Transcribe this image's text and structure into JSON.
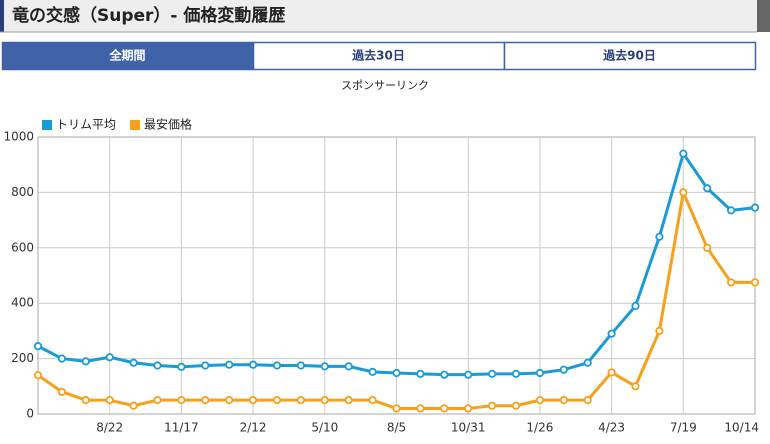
{
  "header": {
    "title": "竜の交感（Super）- 価格変動履歴"
  },
  "tabs": [
    "全期間",
    "過去30日",
    "過去90日"
  ],
  "sponsor": "スポンサーリンク",
  "chart_data": {
    "type": "line",
    "categories": [
      null,
      null,
      null,
      "8/22",
      null,
      null,
      "11/17",
      null,
      null,
      "2/12",
      null,
      null,
      "5/10",
      null,
      null,
      "8/5",
      null,
      null,
      "10/31",
      null,
      null,
      "1/26",
      null,
      null,
      "4/23",
      null,
      null,
      "7/19",
      null,
      null,
      "10/14"
    ],
    "series": [
      {
        "name": "トリム平均",
        "color": "#1a9bd7",
        "values": [
          245,
          200,
          190,
          205,
          185,
          175,
          170,
          175,
          178,
          178,
          175,
          175,
          172,
          172,
          152,
          148,
          145,
          142,
          142,
          145,
          145,
          148,
          160,
          185,
          290,
          390,
          640,
          940,
          815,
          735,
          745
        ]
      },
      {
        "name": "最安価格",
        "color": "#f7a11a",
        "values": [
          140,
          80,
          50,
          50,
          30,
          50,
          50,
          50,
          50,
          50,
          50,
          50,
          50,
          50,
          50,
          20,
          20,
          20,
          20,
          30,
          30,
          50,
          50,
          50,
          150,
          100,
          300,
          800,
          600,
          475,
          475
        ]
      }
    ],
    "ylim": [
      0,
      1000
    ],
    "yticks": [
      0,
      200,
      400,
      600,
      800,
      1000
    ],
    "grid": true,
    "legend": "top-left"
  }
}
